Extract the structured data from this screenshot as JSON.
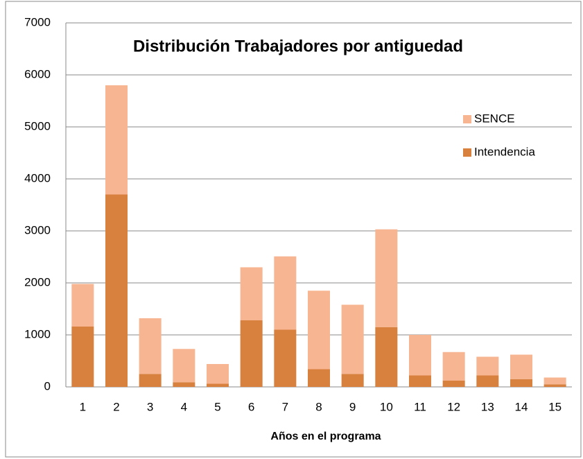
{
  "chart_data": {
    "type": "stacked_bar",
    "title": "Distribución Trabajadores por antiguedad",
    "x_label": "Años en el programa",
    "categories": [
      "1",
      "2",
      "3",
      "4",
      "5",
      "6",
      "7",
      "8",
      "9",
      "10",
      "11",
      "12",
      "13",
      "14",
      "15"
    ],
    "series": [
      {
        "name": "Intendencia",
        "color": "#d8813e",
        "values": [
          1160,
          3700,
          250,
          90,
          60,
          1280,
          1100,
          340,
          250,
          1150,
          220,
          120,
          220,
          150,
          50
        ]
      },
      {
        "name": "SENCE",
        "color": "#f8b591",
        "values": [
          820,
          2100,
          1070,
          640,
          380,
          1020,
          1410,
          1510,
          1330,
          1880,
          780,
          550,
          360,
          470,
          130
        ]
      }
    ],
    "ylim": [
      0,
      7000
    ],
    "yticks": [
      0,
      1000,
      2000,
      3000,
      4000,
      5000,
      6000,
      7000
    ],
    "grid": true,
    "legend": "right"
  }
}
